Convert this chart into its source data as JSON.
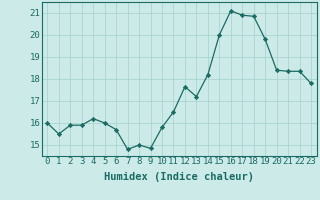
{
  "x": [
    0,
    1,
    2,
    3,
    4,
    5,
    6,
    7,
    8,
    9,
    10,
    11,
    12,
    13,
    14,
    15,
    16,
    17,
    18,
    19,
    20,
    21,
    22,
    23
  ],
  "y": [
    16.0,
    15.5,
    15.9,
    15.9,
    16.2,
    16.0,
    15.7,
    14.8,
    15.0,
    14.85,
    15.8,
    16.5,
    17.65,
    17.2,
    18.2,
    20.0,
    21.1,
    20.9,
    20.85,
    19.8,
    18.4,
    18.35,
    18.35,
    17.8
  ],
  "line_color": "#1a6b63",
  "marker": "D",
  "marker_size": 2.2,
  "bg_color": "#cceae8",
  "grid_color": "#aad4d0",
  "xlabel": "Humidex (Indice chaleur)",
  "ylim": [
    14.5,
    21.5
  ],
  "xlim": [
    -0.5,
    23.5
  ],
  "yticks": [
    15,
    16,
    17,
    18,
    19,
    20,
    21
  ],
  "xticks": [
    0,
    1,
    2,
    3,
    4,
    5,
    6,
    7,
    8,
    9,
    10,
    11,
    12,
    13,
    14,
    15,
    16,
    17,
    18,
    19,
    20,
    21,
    22,
    23
  ],
  "font_color": "#1a6b63",
  "xlabel_fontsize": 7.5,
  "tick_fontsize": 6.5,
  "linewidth": 0.9
}
